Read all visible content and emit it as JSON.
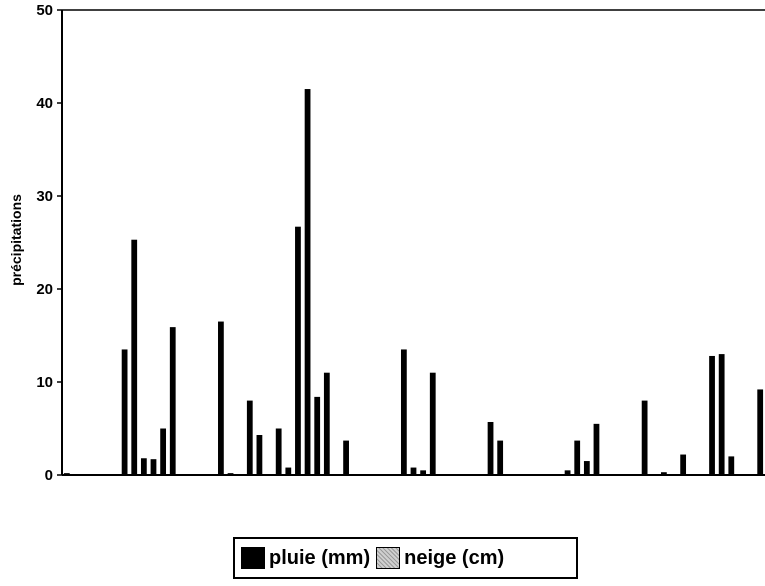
{
  "chart_data": {
    "type": "bar",
    "ylabel": "précipitations",
    "ylim": [
      0,
      50
    ],
    "yticks": [
      "0",
      "10",
      "20",
      "30",
      "40",
      "50"
    ],
    "legend_position": "bottom-center",
    "grid": false,
    "series": [
      {
        "name": "pluie (mm)",
        "color": "#000000",
        "values": [
          0.2,
          0,
          0,
          0,
          0,
          0,
          13.5,
          25.3,
          1.8,
          1.7,
          5,
          15.9,
          0,
          0,
          0,
          0,
          16.5,
          0.2,
          0,
          8,
          4.3,
          0,
          5,
          0.8,
          26.7,
          41.5,
          8.4,
          11,
          0,
          3.7,
          0,
          0,
          0,
          0,
          0,
          13.5,
          0.8,
          0.5,
          11,
          0,
          0,
          0,
          0,
          0,
          5.7,
          3.7,
          0,
          0,
          0,
          0,
          0,
          0,
          0.5,
          3.7,
          1.5,
          5.5,
          0,
          0,
          0,
          0,
          8,
          0,
          0.3,
          0,
          2.2,
          0,
          0,
          12.8,
          13,
          2,
          0,
          0,
          9.2
        ]
      },
      {
        "name": "neige (cm)",
        "color": "#cfcfcf",
        "values": []
      }
    ]
  }
}
